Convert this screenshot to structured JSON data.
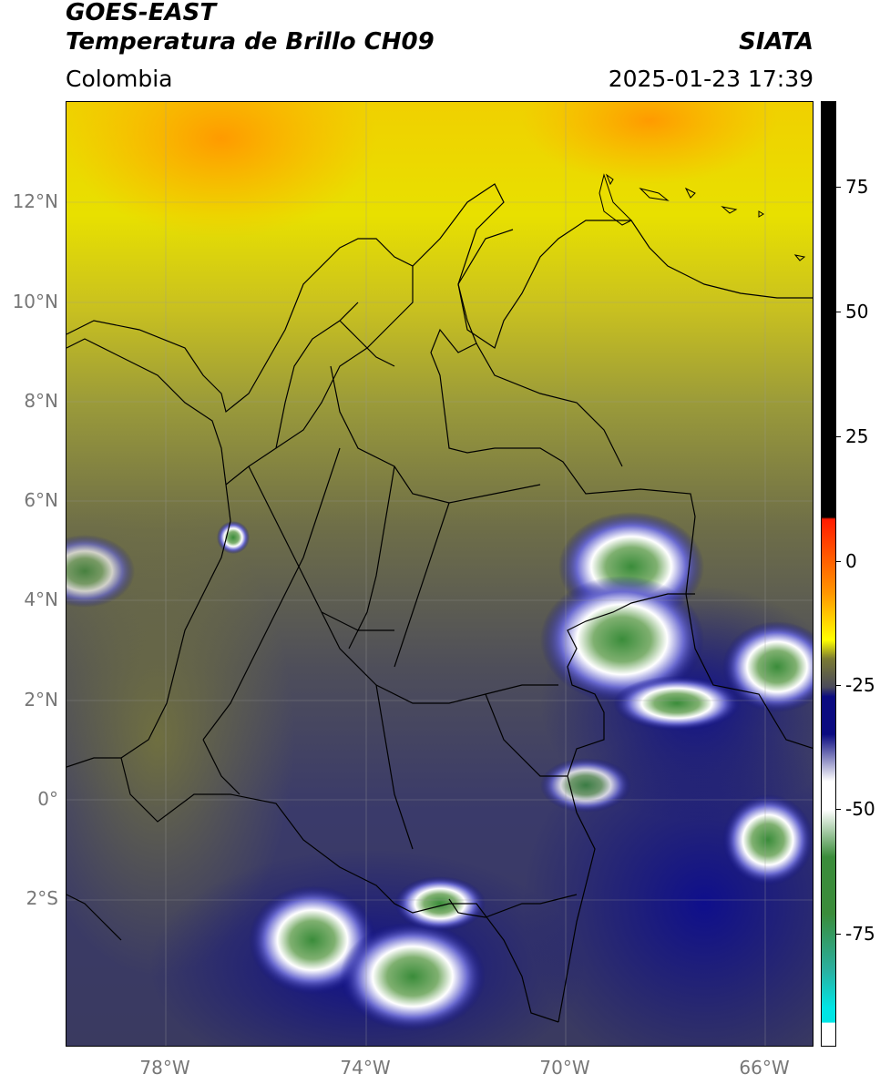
{
  "header": {
    "satellite": "GOES-EAST",
    "product": "Temperatura de Brillo CH09",
    "region": "Colombia",
    "organization": "SIATA",
    "datetime": "2025-01-23 17:39"
  },
  "map": {
    "lat_labels": [
      "12°N",
      "10°N",
      "8°N",
      "6°N",
      "4°N",
      "2°N",
      "0°",
      "2°S"
    ],
    "lon_labels": [
      "78°W",
      "74°W",
      "70°W",
      "66°W"
    ],
    "features": {
      "country": "Colombia",
      "boundaries": "departmental-and-national",
      "gridlines": true
    }
  },
  "colorbar": {
    "labels": [
      "75",
      "50",
      "25",
      "0",
      "-25",
      "-50",
      "-75"
    ],
    "colors": {
      "black": "#000000",
      "red": "#ff1a00",
      "orange": "#ff9500",
      "yellow": "#ffff00",
      "olive": "#7a7a32",
      "gray": "#4a4a5a",
      "navy": "#0a0a80",
      "white": "#ffffff",
      "green": "#3a8c3a",
      "teal": "#2ab0a0",
      "cyan": "#00e5e5"
    }
  }
}
